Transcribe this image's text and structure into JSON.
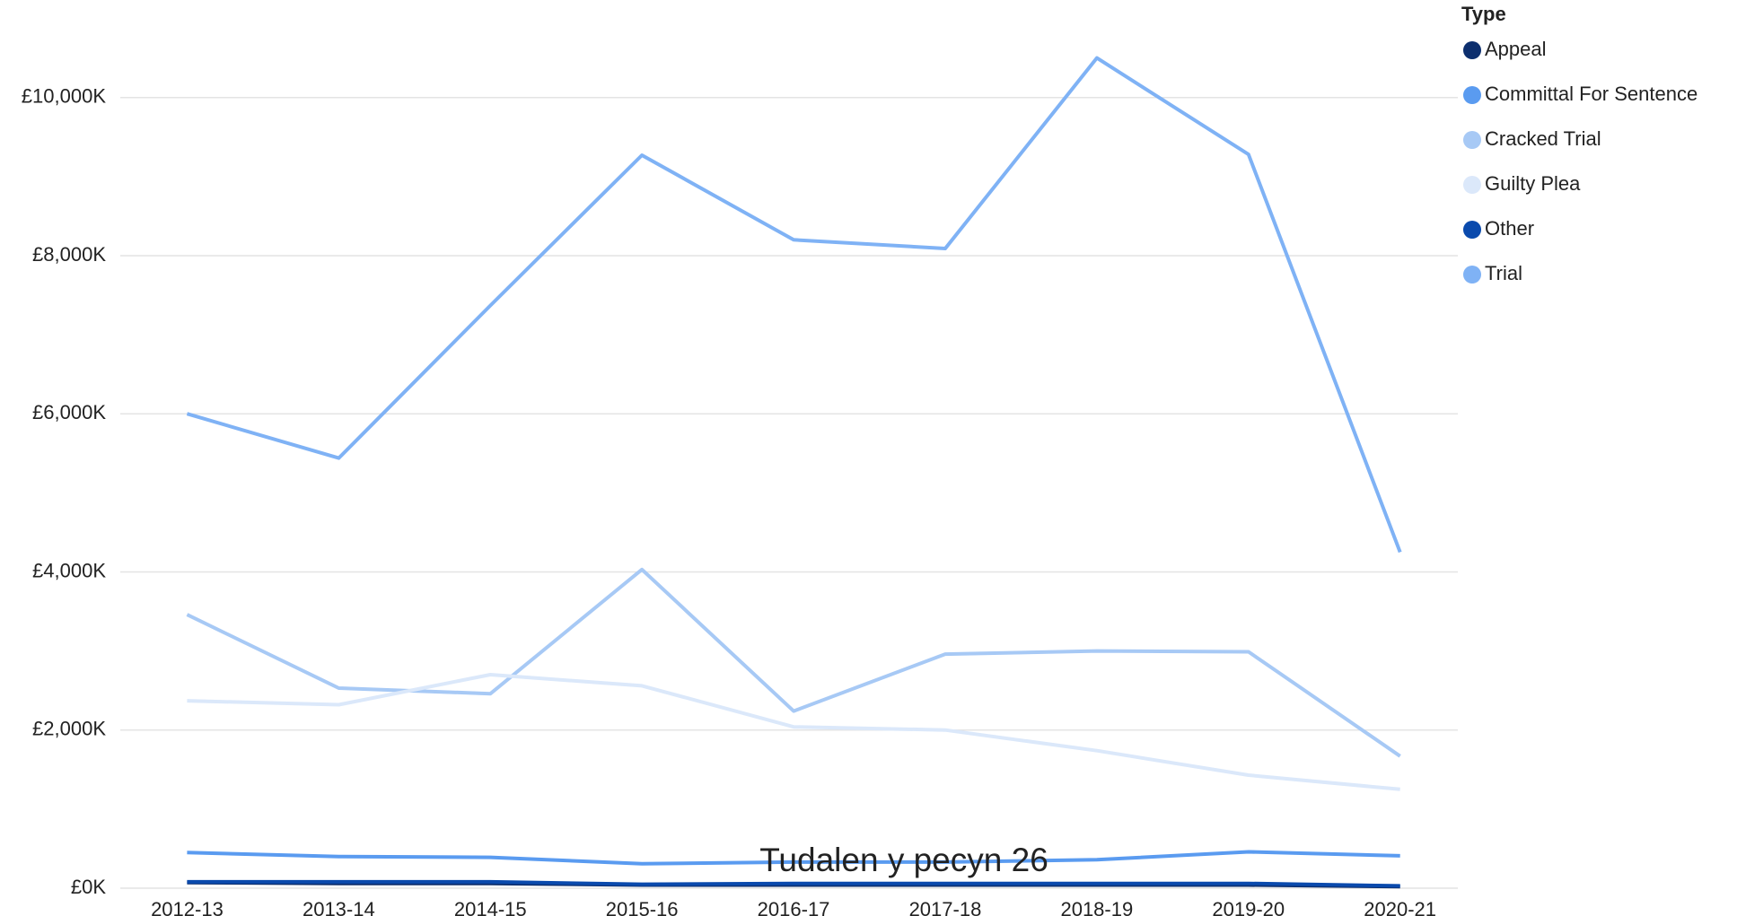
{
  "chart_data": {
    "type": "line",
    "legend_title": "Type",
    "legend_position": "right",
    "annotation": "Tudalen y pecyn 26",
    "categories": [
      "2012-13",
      "2013-14",
      "2014-15",
      "2015-16",
      "2016-17",
      "2017-18",
      "2018-19",
      "2019-20",
      "2020-21"
    ],
    "series": [
      {
        "name": "Appeal",
        "color": "#0d2f6e",
        "values": [
          70,
          60,
          60,
          40,
          40,
          40,
          40,
          40,
          20
        ]
      },
      {
        "name": "Committal For Sentence",
        "color": "#5a9bf0",
        "values": [
          450,
          400,
          390,
          310,
          330,
          330,
          360,
          460,
          410
        ]
      },
      {
        "name": "Cracked Trial",
        "color": "#a7c9f5",
        "values": [
          3460,
          2530,
          2460,
          4030,
          2240,
          2960,
          3000,
          2990,
          1670
        ]
      },
      {
        "name": "Guilty Plea",
        "color": "#dbe8fa",
        "values": [
          2370,
          2320,
          2700,
          2560,
          2040,
          2000,
          1740,
          1430,
          1250
        ]
      },
      {
        "name": "Other",
        "color": "#0a4aad",
        "values": [
          80,
          80,
          80,
          50,
          60,
          60,
          60,
          60,
          30
        ]
      },
      {
        "name": "Trial",
        "color": "#7fb2f5",
        "values": [
          6000,
          5440,
          7370,
          9270,
          8200,
          8090,
          10500,
          9280,
          4250
        ]
      }
    ],
    "ylim": [
      0,
      10700
    ],
    "yticks": [
      {
        "value": 0,
        "label": "£0K"
      },
      {
        "value": 2000,
        "label": "£2,000K"
      },
      {
        "value": 4000,
        "label": "£4,000K"
      },
      {
        "value": 6000,
        "label": "£6,000K"
      },
      {
        "value": 8000,
        "label": "£8,000K"
      },
      {
        "value": 10000,
        "label": "£10,000K"
      }
    ],
    "grid": true
  }
}
